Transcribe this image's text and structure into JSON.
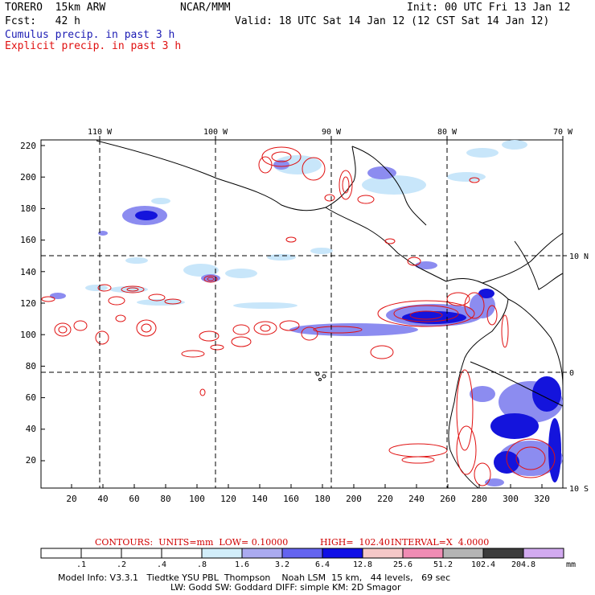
{
  "header": {
    "model": "TORERO  15km ARW",
    "org": "NCAR/MMM",
    "init": "Init: 00 UTC Fri 13 Jan 12",
    "fcst": "Fcst:   42 h",
    "valid": "Valid: 18 UTC Sat 14 Jan 12 (12 CST Sat 14 Jan 12)",
    "line_cumulus": "Cumulus precip. in past 3 h",
    "line_explicit": "Explicit precip. in past 3 h"
  },
  "axes": {
    "top_lon_labels": [
      "110 W",
      "100 W",
      "90 W",
      "80 W",
      "70 W"
    ],
    "right_lat_labels": [
      "10 N",
      "0",
      "10 S"
    ],
    "left_y_ticks": [
      "220",
      "200",
      "180",
      "160",
      "140",
      "120",
      "100",
      "80",
      "60",
      "40",
      "20"
    ],
    "bottom_x_ticks": [
      "20",
      "40",
      "60",
      "80",
      "100",
      "120",
      "140",
      "160",
      "180",
      "200",
      "220",
      "240",
      "260",
      "280",
      "300",
      "320"
    ]
  },
  "contours_line": {
    "label": "CONTOURS:  UNITS=mm  LOW= 0.10000",
    "high": "HIGH=  102.40",
    "interval": "INTERVAL=X  4.0000"
  },
  "colorbar": {
    "unit": "mm",
    "labels": [
      ".1",
      ".2",
      ".4",
      ".8",
      "1.6",
      "3.2",
      "6.4",
      "12.8",
      "25.6",
      "51.2",
      "102.4",
      "204.8"
    ],
    "colors": [
      "#ffffff",
      "#ffffff",
      "#ffffff",
      "#ffffff",
      "#d2eefa",
      "#aaaaf0",
      "#6464f0",
      "#1010e6",
      "#f5c8c8",
      "#f08cb4",
      "#b4b4b4",
      "#3c3c3c",
      "#d2aaf0"
    ]
  },
  "footer": {
    "line1": "Model Info: V3.3.1   Tiedtke YSU PBL  Thompson    Noah LSM  15 km,   44 levels,   69 sec",
    "line2": "LW: Godd SW: Goddard DIFF: simple KM: 2D Smagor"
  },
  "colors": {
    "explicit_contour": "#e01010",
    "cumulus_light": "#c8e6fa",
    "cumulus_mid": "#8c8cf0",
    "cumulus_dark": "#1414dc",
    "coast": "#000000"
  }
}
